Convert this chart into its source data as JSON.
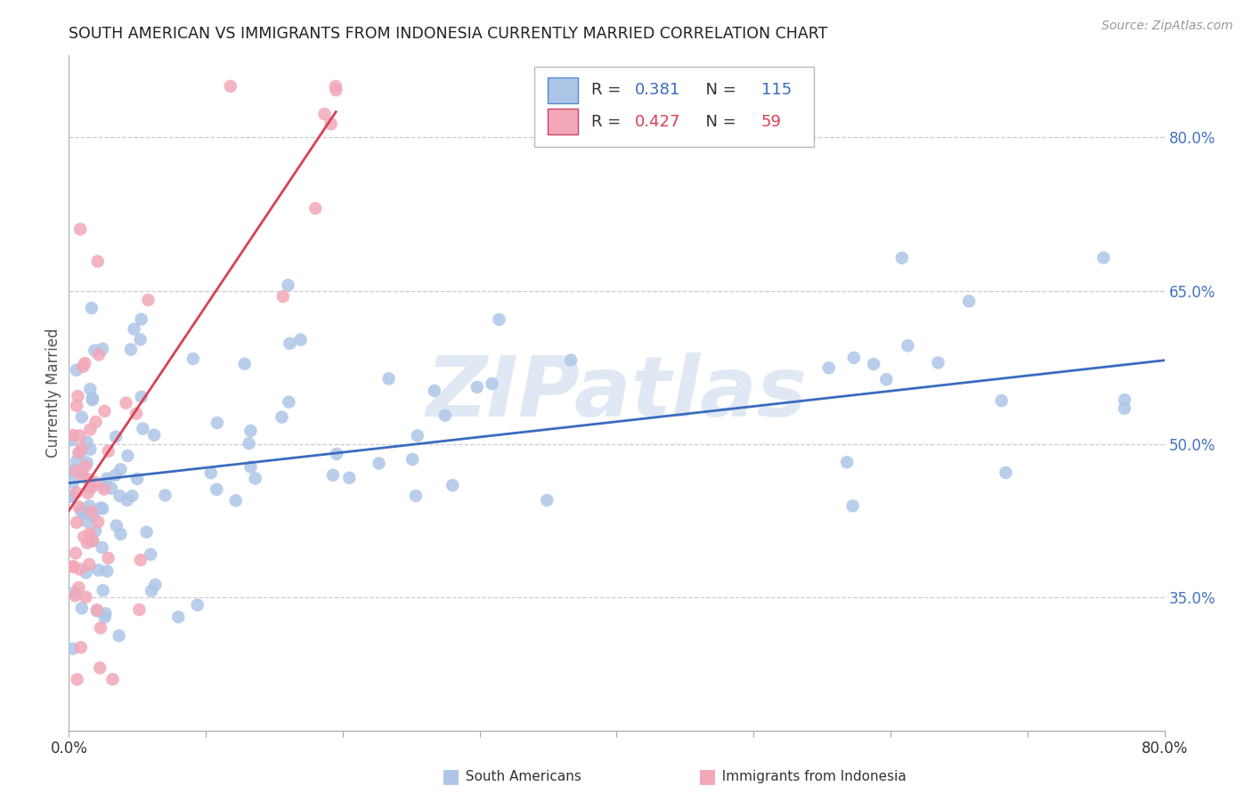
{
  "title": "SOUTH AMERICAN VS IMMIGRANTS FROM INDONESIA CURRENTLY MARRIED CORRELATION CHART",
  "source": "Source: ZipAtlas.com",
  "ylabel": "Currently Married",
  "ytick_values": [
    0.8,
    0.65,
    0.5,
    0.35
  ],
  "xlim": [
    0.0,
    0.8
  ],
  "ylim": [
    0.22,
    0.88
  ],
  "blue_R": 0.381,
  "blue_N": 115,
  "pink_R": 0.427,
  "pink_N": 59,
  "blue_color": "#adc6e8",
  "pink_color": "#f2a8b8",
  "blue_line_color": "#3a6bbf",
  "pink_line_color": "#d94055",
  "watermark": "ZIPatlas",
  "legend_label_blue": "South Americans",
  "legend_label_pink": "Immigrants from Indonesia",
  "blue_line_x": [
    0.0,
    0.8
  ],
  "blue_line_y": [
    0.462,
    0.582
  ],
  "pink_line_x": [
    0.0,
    0.195
  ],
  "pink_line_y": [
    0.435,
    0.825
  ],
  "background_color": "#ffffff",
  "grid_color": "#cccccc",
  "title_color": "#222222",
  "axis_label_color": "#555555",
  "right_ytick_color": "#4472c4",
  "xtick_color": "#333333"
}
